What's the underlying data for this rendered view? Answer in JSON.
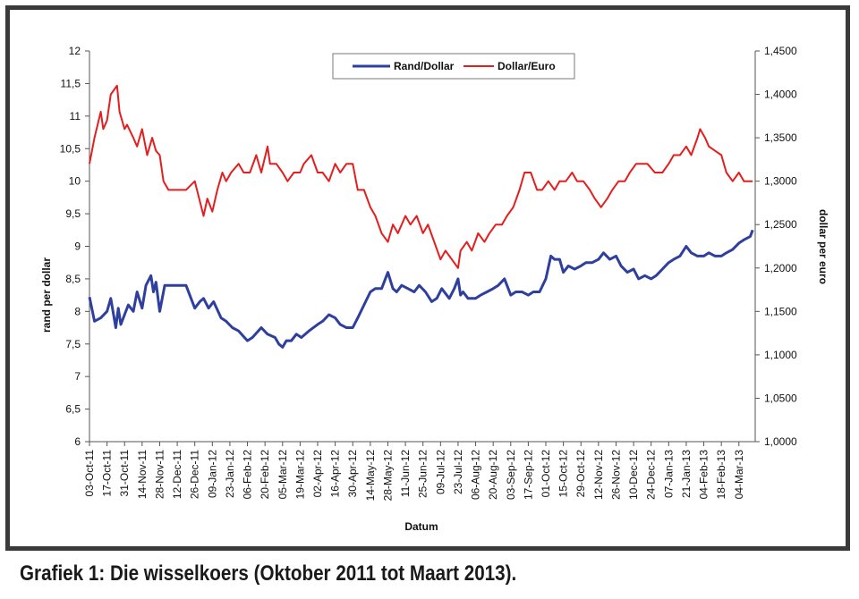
{
  "caption": "Grafiek 1: Die wisselkoers (Oktober 2011 tot Maart 2013).",
  "chart_data": {
    "type": "line",
    "xlabel": "Datum",
    "ylabel_left": "rand per dollar",
    "ylabel_right": "dollar per euro",
    "ylim_left": [
      6,
      12
    ],
    "ylim_right": [
      1.0,
      1.45
    ],
    "grid": false,
    "legend_position": "top-center",
    "x_tick_labels": [
      "03-Oct-11",
      "17-Oct-11",
      "31-Oct-11",
      "14-Nov-11",
      "28-Nov-11",
      "12-Dec-11",
      "26-Dec-11",
      "09-Jan-12",
      "23-Jan-12",
      "06-Feb-12",
      "20-Feb-12",
      "05-Mar-12",
      "19-Mar-12",
      "02-Apr-12",
      "16-Apr-12",
      "30-Apr-12",
      "14-May-12",
      "28-May-12",
      "11-Jun-12",
      "25-Jun-12",
      "09-Jul-12",
      "23-Jul-12",
      "06-Aug-12",
      "20-Aug-12",
      "03-Sep-12",
      "17-Sep-12",
      "01-Oct-12",
      "15-Oct-12",
      "29-Oct-12",
      "12-Nov-12",
      "26-Nov-12",
      "10-Dec-12",
      "24-Dec-12",
      "07-Jan-13",
      "21-Jan-13",
      "04-Feb-13",
      "18-Feb-13",
      "04-Mar-13"
    ],
    "y_tick_labels_left": [
      "6",
      "6,5",
      "7",
      "7,5",
      "8",
      "8,5",
      "9",
      "9,5",
      "10",
      "10,5",
      "11",
      "11,5",
      "12"
    ],
    "y_tick_labels_right": [
      "1,0000",
      "1,0500",
      "1,1000",
      "1,1500",
      "1,2000",
      "1,2500",
      "1,3000",
      "1,3500",
      "1,4000",
      "1,4500"
    ],
    "series": [
      {
        "name": "Rand/Dollar",
        "axis": "left",
        "color": "#2e3f9e",
        "x": [
          "2011-10-03",
          "2011-10-07",
          "2011-10-12",
          "2011-10-17",
          "2011-10-20",
          "2011-10-24",
          "2011-10-26",
          "2011-10-28",
          "2011-10-31",
          "2011-11-03",
          "2011-11-07",
          "2011-11-10",
          "2011-11-14",
          "2011-11-17",
          "2011-11-21",
          "2011-11-23",
          "2011-11-25",
          "2011-11-28",
          "2011-11-30",
          "2011-12-02",
          "2011-12-05",
          "2011-12-09",
          "2011-12-14",
          "2011-12-19",
          "2011-12-26",
          "2011-12-30",
          "2012-01-02",
          "2012-01-06",
          "2012-01-10",
          "2012-01-16",
          "2012-01-20",
          "2012-01-25",
          "2012-01-30",
          "2012-02-06",
          "2012-02-10",
          "2012-02-17",
          "2012-02-22",
          "2012-02-28",
          "2012-03-02",
          "2012-03-05",
          "2012-03-08",
          "2012-03-12",
          "2012-03-16",
          "2012-03-20",
          "2012-03-26",
          "2012-04-02",
          "2012-04-06",
          "2012-04-11",
          "2012-04-16",
          "2012-04-20",
          "2012-04-25",
          "2012-04-30",
          "2012-05-04",
          "2012-05-09",
          "2012-05-14",
          "2012-05-18",
          "2012-05-23",
          "2012-05-28",
          "2012-06-01",
          "2012-06-04",
          "2012-06-08",
          "2012-06-13",
          "2012-06-18",
          "2012-06-22",
          "2012-06-27",
          "2012-07-02",
          "2012-07-06",
          "2012-07-10",
          "2012-07-16",
          "2012-07-20",
          "2012-07-23",
          "2012-07-25",
          "2012-07-27",
          "2012-07-31",
          "2012-08-06",
          "2012-08-10",
          "2012-08-15",
          "2012-08-20",
          "2012-08-24",
          "2012-08-29",
          "2012-09-03",
          "2012-09-07",
          "2012-09-12",
          "2012-09-17",
          "2012-09-21",
          "2012-09-26",
          "2012-10-01",
          "2012-10-05",
          "2012-10-08",
          "2012-10-12",
          "2012-10-15",
          "2012-10-19",
          "2012-10-24",
          "2012-10-29",
          "2012-11-02",
          "2012-11-07",
          "2012-11-12",
          "2012-11-16",
          "2012-11-21",
          "2012-11-26",
          "2012-11-30",
          "2012-12-05",
          "2012-12-10",
          "2012-12-14",
          "2012-12-19",
          "2012-12-24",
          "2012-12-28",
          "2013-01-02",
          "2013-01-07",
          "2013-01-11",
          "2013-01-16",
          "2013-01-21",
          "2013-01-25",
          "2013-01-30",
          "2013-02-04",
          "2013-02-08",
          "2013-02-13",
          "2013-02-18",
          "2013-02-22",
          "2013-02-27",
          "2013-03-04",
          "2013-03-08",
          "2013-03-13",
          "2013-03-15"
        ],
        "values": [
          8.22,
          7.85,
          7.9,
          8.0,
          8.2,
          7.75,
          8.05,
          7.8,
          7.95,
          8.1,
          8.0,
          8.3,
          8.05,
          8.4,
          8.55,
          8.3,
          8.45,
          8.0,
          8.2,
          8.4,
          8.4,
          8.4,
          8.4,
          8.4,
          8.05,
          8.15,
          8.2,
          8.05,
          8.15,
          7.9,
          7.85,
          7.75,
          7.7,
          7.55,
          7.6,
          7.75,
          7.65,
          7.6,
          7.5,
          7.45,
          7.55,
          7.55,
          7.65,
          7.6,
          7.7,
          7.8,
          7.85,
          7.95,
          7.9,
          7.8,
          7.75,
          7.75,
          7.9,
          8.1,
          8.3,
          8.35,
          8.35,
          8.6,
          8.35,
          8.3,
          8.4,
          8.35,
          8.3,
          8.4,
          8.3,
          8.15,
          8.2,
          8.35,
          8.2,
          8.35,
          8.5,
          8.25,
          8.3,
          8.2,
          8.2,
          8.25,
          8.3,
          8.35,
          8.4,
          8.5,
          8.25,
          8.3,
          8.3,
          8.25,
          8.3,
          8.3,
          8.5,
          8.85,
          8.8,
          8.8,
          8.6,
          8.7,
          8.65,
          8.7,
          8.75,
          8.75,
          8.8,
          8.9,
          8.8,
          8.85,
          8.7,
          8.6,
          8.65,
          8.5,
          8.55,
          8.5,
          8.55,
          8.65,
          8.75,
          8.8,
          8.85,
          9.0,
          8.9,
          8.85,
          8.85,
          8.9,
          8.85,
          8.85,
          8.9,
          8.95,
          9.05,
          9.1,
          9.15,
          9.25
        ]
      },
      {
        "name": "Dollar/Euro",
        "axis": "right",
        "color": "#e41e1e",
        "x": [
          "2011-10-03",
          "2011-10-07",
          "2011-10-12",
          "2011-10-14",
          "2011-10-17",
          "2011-10-20",
          "2011-10-25",
          "2011-10-27",
          "2011-10-31",
          "2011-11-02",
          "2011-11-07",
          "2011-11-10",
          "2011-11-14",
          "2011-11-18",
          "2011-11-22",
          "2011-11-25",
          "2011-11-28",
          "2011-12-01",
          "2011-12-05",
          "2011-12-09",
          "2011-12-14",
          "2011-12-19",
          "2011-12-26",
          "2012-01-02",
          "2012-01-05",
          "2012-01-09",
          "2012-01-13",
          "2012-01-17",
          "2012-01-20",
          "2012-01-24",
          "2012-01-30",
          "2012-02-03",
          "2012-02-08",
          "2012-02-13",
          "2012-02-17",
          "2012-02-22",
          "2012-02-24",
          "2012-02-29",
          "2012-03-05",
          "2012-03-09",
          "2012-03-14",
          "2012-03-19",
          "2012-03-22",
          "2012-03-28",
          "2012-04-02",
          "2012-04-06",
          "2012-04-11",
          "2012-04-16",
          "2012-04-20",
          "2012-04-25",
          "2012-04-30",
          "2012-05-04",
          "2012-05-09",
          "2012-05-14",
          "2012-05-18",
          "2012-05-23",
          "2012-05-28",
          "2012-06-01",
          "2012-06-05",
          "2012-06-11",
          "2012-06-15",
          "2012-06-20",
          "2012-06-25",
          "2012-06-29",
          "2012-07-04",
          "2012-07-09",
          "2012-07-13",
          "2012-07-18",
          "2012-07-23",
          "2012-07-25",
          "2012-07-30",
          "2012-08-03",
          "2012-08-08",
          "2012-08-13",
          "2012-08-17",
          "2012-08-22",
          "2012-08-27",
          "2012-08-31",
          "2012-09-05",
          "2012-09-10",
          "2012-09-14",
          "2012-09-19",
          "2012-09-24",
          "2012-09-28",
          "2012-10-03",
          "2012-10-08",
          "2012-10-12",
          "2012-10-17",
          "2012-10-22",
          "2012-10-26",
          "2012-10-31",
          "2012-11-05",
          "2012-11-09",
          "2012-11-14",
          "2012-11-19",
          "2012-11-23",
          "2012-11-28",
          "2012-12-03",
          "2012-12-07",
          "2012-12-12",
          "2012-12-17",
          "2012-12-21",
          "2012-12-27",
          "2013-01-02",
          "2013-01-07",
          "2013-01-11",
          "2013-01-16",
          "2013-01-21",
          "2013-01-25",
          "2013-01-30",
          "2013-02-01",
          "2013-02-05",
          "2013-02-08",
          "2013-02-13",
          "2013-02-18",
          "2013-02-22",
          "2013-02-27",
          "2013-03-04",
          "2013-03-08",
          "2013-03-13",
          "2013-03-15"
        ],
        "values": [
          1.32,
          1.35,
          1.38,
          1.36,
          1.37,
          1.4,
          1.41,
          1.38,
          1.36,
          1.365,
          1.35,
          1.34,
          1.36,
          1.33,
          1.35,
          1.335,
          1.33,
          1.3,
          1.29,
          1.29,
          1.29,
          1.29,
          1.3,
          1.26,
          1.28,
          1.265,
          1.29,
          1.31,
          1.3,
          1.31,
          1.32,
          1.31,
          1.31,
          1.33,
          1.31,
          1.34,
          1.32,
          1.32,
          1.31,
          1.3,
          1.31,
          1.31,
          1.32,
          1.33,
          1.31,
          1.31,
          1.3,
          1.32,
          1.31,
          1.32,
          1.32,
          1.29,
          1.29,
          1.27,
          1.26,
          1.24,
          1.23,
          1.25,
          1.24,
          1.26,
          1.25,
          1.26,
          1.24,
          1.25,
          1.23,
          1.21,
          1.22,
          1.21,
          1.2,
          1.22,
          1.23,
          1.22,
          1.24,
          1.23,
          1.24,
          1.25,
          1.25,
          1.26,
          1.27,
          1.29,
          1.31,
          1.31,
          1.29,
          1.29,
          1.3,
          1.29,
          1.3,
          1.3,
          1.31,
          1.3,
          1.3,
          1.29,
          1.28,
          1.27,
          1.28,
          1.29,
          1.3,
          1.3,
          1.31,
          1.32,
          1.32,
          1.32,
          1.31,
          1.31,
          1.32,
          1.33,
          1.33,
          1.34,
          1.33,
          1.35,
          1.36,
          1.35,
          1.34,
          1.335,
          1.33,
          1.31,
          1.3,
          1.31,
          1.3,
          1.3,
          1.3
        ]
      }
    ]
  }
}
